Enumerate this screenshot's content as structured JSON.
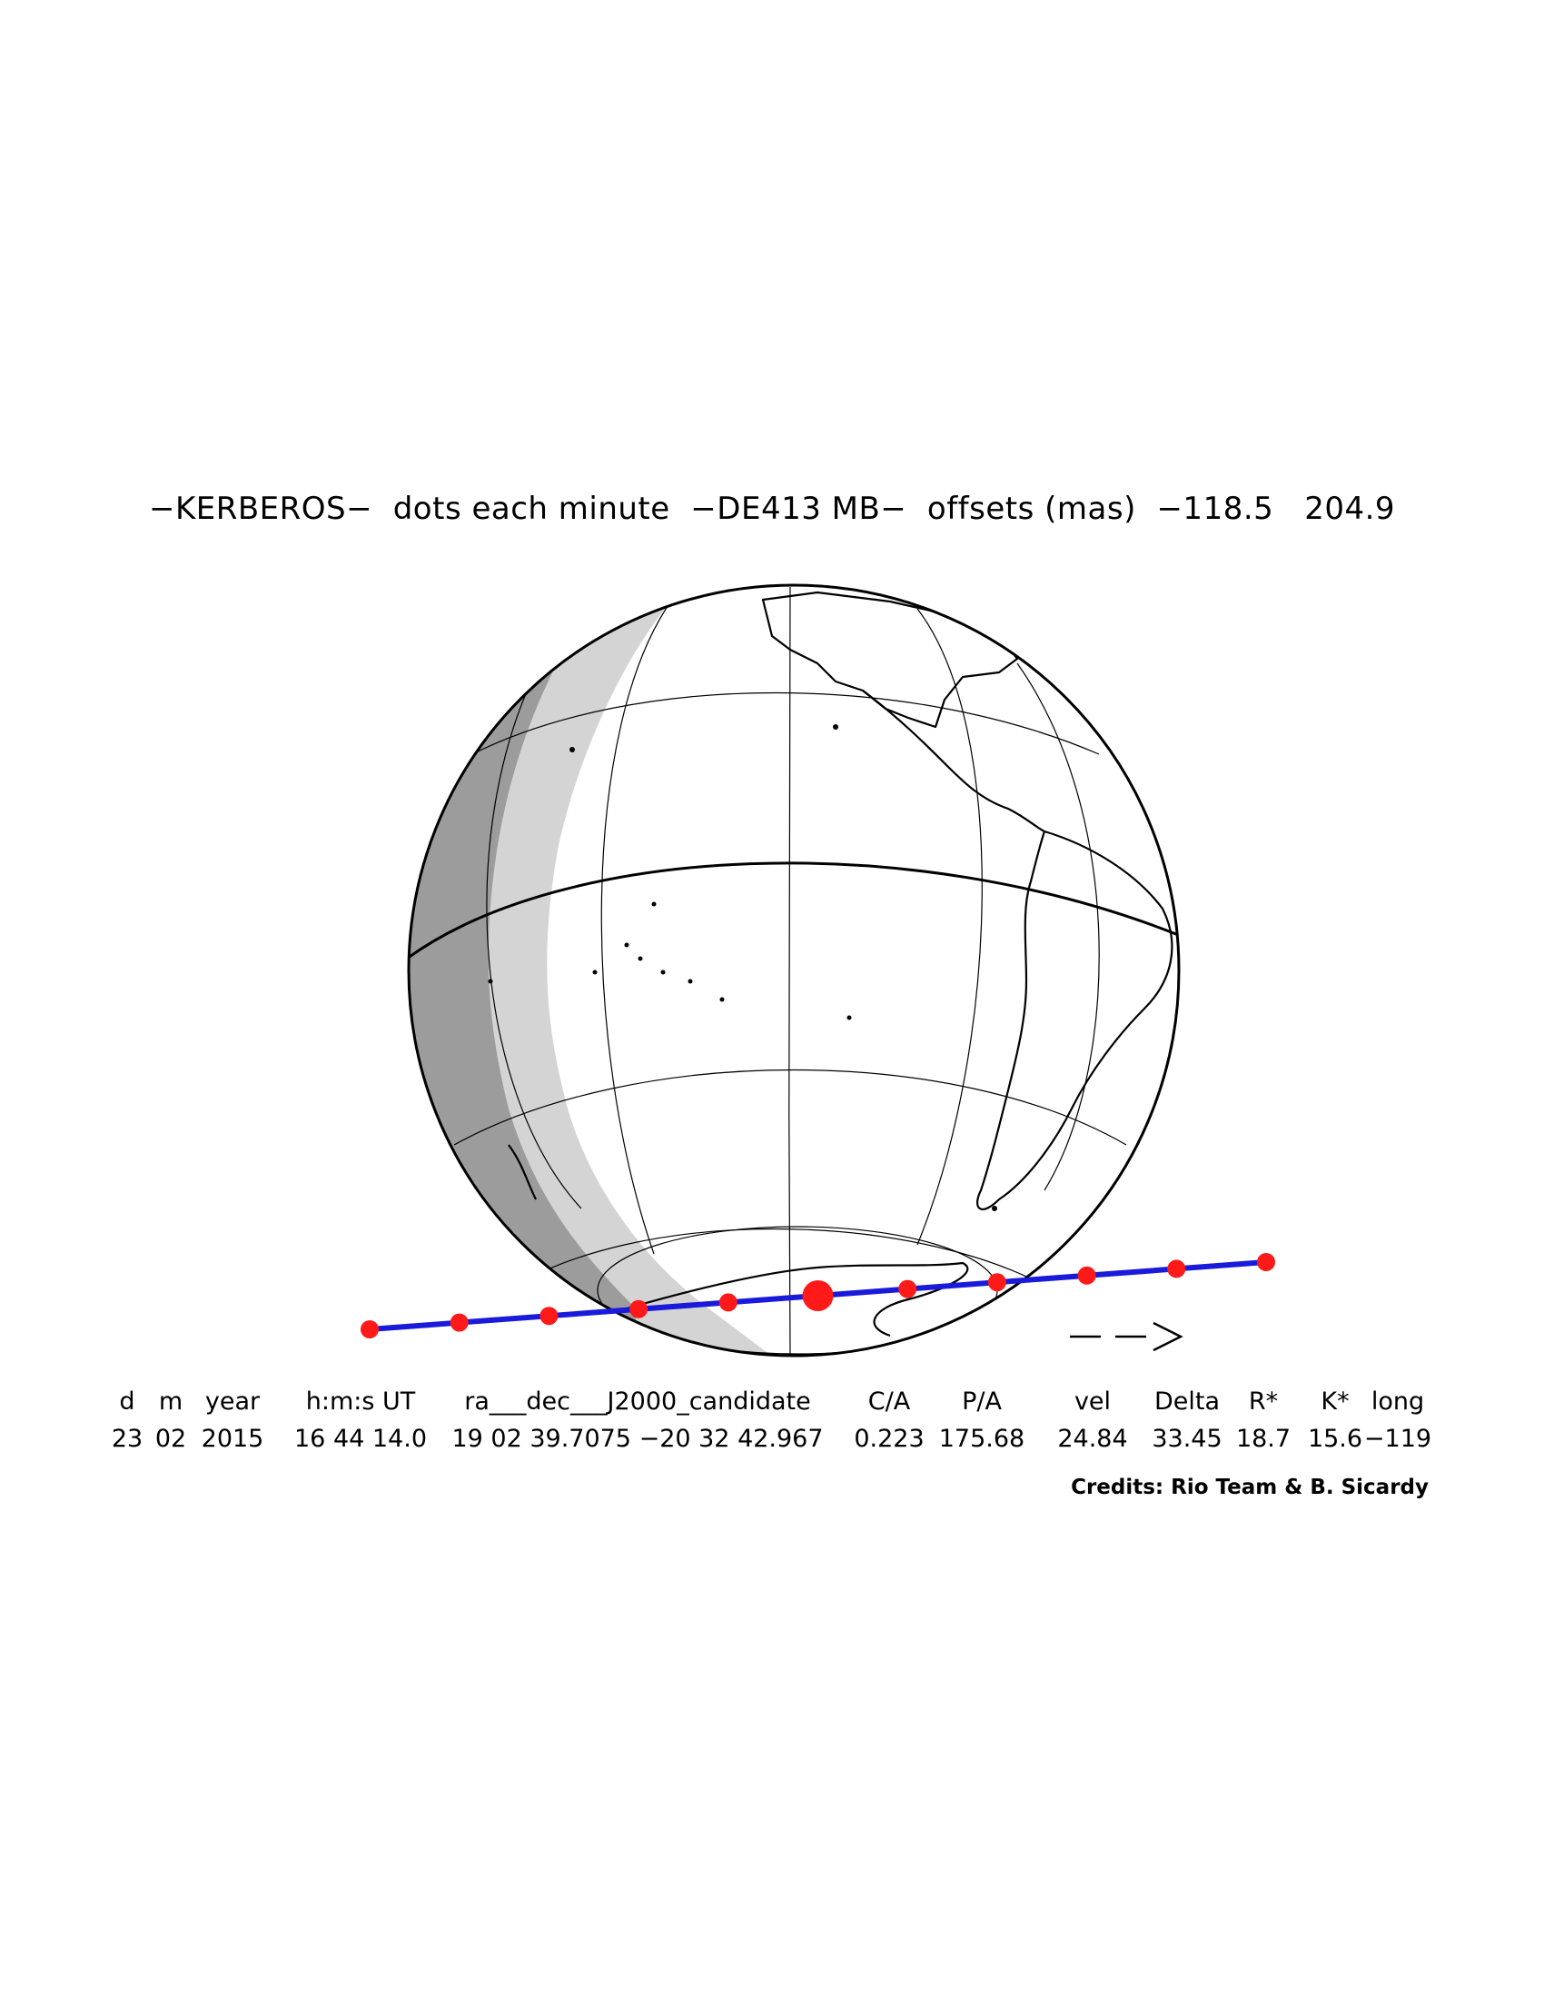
{
  "title": "−KERBEROS−  dots each minute  −DE413 MB−  offsets (mas)  −118.5   204.9",
  "colors": {
    "track_line": "#1a1adb",
    "track_dots": "#ff1a1a",
    "shadow_dark": "#9c9c9c",
    "shadow_light": "#d4d4d4",
    "outline": "#000000"
  },
  "track": {
    "dots_per": "minute",
    "dot_count": 11,
    "closest_approach_index": 5
  },
  "direction_arrow": "− −>",
  "table": {
    "headers": [
      "d",
      "m",
      "year",
      "h:m:s UT",
      "ra___dec___J2000_candidate",
      "C/A",
      "P/A",
      "vel",
      "Delta",
      "R*",
      "K*",
      "long"
    ],
    "values": [
      "23",
      "02",
      "2015",
      "16 44 14.0",
      "19 02 39.7075 −20 32 42.967",
      "0.223",
      "175.68",
      "24.84",
      "33.45",
      "18.7",
      "15.6",
      "−119"
    ]
  },
  "credits": "Credits: Rio Team & B. Sicardy"
}
